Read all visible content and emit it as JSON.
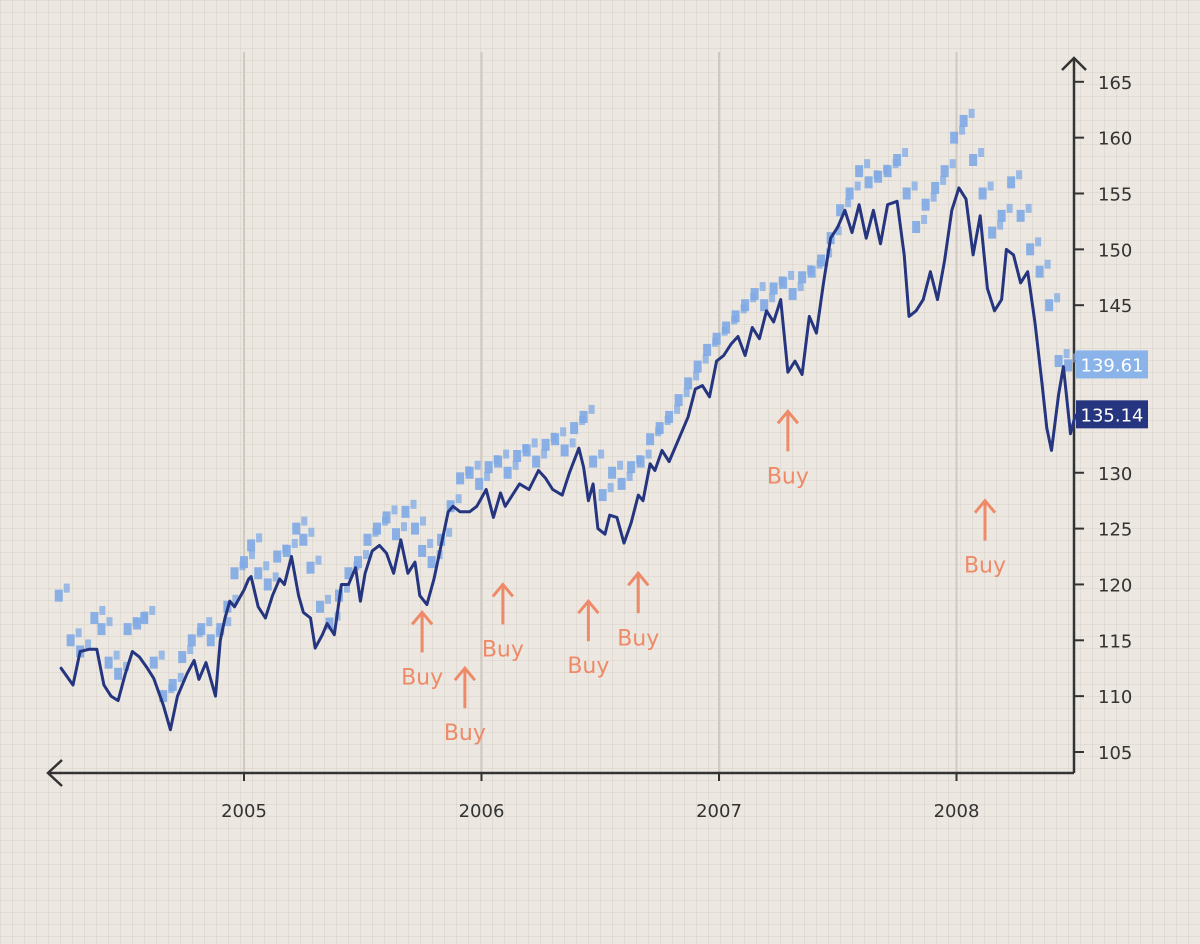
{
  "chart_data": {
    "type": "line",
    "x_axis": {
      "range": [
        2004.2,
        2008.5
      ],
      "ticks": [
        2005,
        2006,
        2007,
        2008
      ],
      "tick_labels": [
        "2005",
        "2006",
        "2007",
        "2008"
      ],
      "grid": true
    },
    "y_axis": {
      "range": [
        102,
        167
      ],
      "ticks": [
        105,
        110,
        115,
        120,
        125,
        130,
        135,
        140,
        145,
        150,
        155,
        160,
        165
      ],
      "tick_labels": [
        "105",
        "110",
        "115",
        "120",
        "125",
        "130",
        "135",
        "140",
        "145",
        "150",
        "155",
        "160",
        "165"
      ],
      "position": "right"
    },
    "colors": {
      "main_line": "#25357f",
      "secondary_dots": "#7fa9e4",
      "buy": "#ee8a68",
      "axis": "#333333",
      "badge_light": "#8ab3ea",
      "badge_dark": "#25357f"
    },
    "series": [
      {
        "style": "line",
        "points": [
          [
            2004.23,
            112.5
          ],
          [
            2004.28,
            111
          ],
          [
            2004.31,
            114
          ],
          [
            2004.35,
            114.2
          ],
          [
            2004.38,
            114.2
          ],
          [
            2004.41,
            111
          ],
          [
            2004.44,
            110
          ],
          [
            2004.47,
            109.6
          ],
          [
            2004.5,
            112
          ],
          [
            2004.53,
            114
          ],
          [
            2004.56,
            113.5
          ],
          [
            2004.59,
            112.6
          ],
          [
            2004.62,
            111.6
          ],
          [
            2004.66,
            109.2
          ],
          [
            2004.69,
            107
          ],
          [
            2004.72,
            110
          ],
          [
            2004.76,
            112
          ],
          [
            2004.79,
            113.2
          ],
          [
            2004.81,
            111.5
          ],
          [
            2004.84,
            113
          ],
          [
            2004.88,
            110
          ],
          [
            2004.9,
            115
          ],
          [
            2004.92,
            117
          ],
          [
            2004.94,
            118.5
          ],
          [
            2004.96,
            118
          ],
          [
            2005.0,
            119.5
          ],
          [
            2005.02,
            120.5
          ],
          [
            2005.03,
            120.7
          ],
          [
            2005.06,
            118
          ],
          [
            2005.09,
            117
          ],
          [
            2005.12,
            119
          ],
          [
            2005.15,
            120.5
          ],
          [
            2005.17,
            120
          ],
          [
            2005.2,
            122.5
          ],
          [
            2005.23,
            119
          ],
          [
            2005.25,
            117.5
          ],
          [
            2005.28,
            117
          ],
          [
            2005.3,
            114.3
          ],
          [
            2005.33,
            115.5
          ],
          [
            2005.35,
            116.5
          ],
          [
            2005.38,
            115.5
          ],
          [
            2005.41,
            120
          ],
          [
            2005.44,
            120
          ],
          [
            2005.47,
            121.5
          ],
          [
            2005.49,
            118.5
          ],
          [
            2005.51,
            121
          ],
          [
            2005.54,
            123
          ],
          [
            2005.57,
            123.5
          ],
          [
            2005.6,
            122.8
          ],
          [
            2005.63,
            121
          ],
          [
            2005.66,
            124
          ],
          [
            2005.69,
            121
          ],
          [
            2005.72,
            122
          ],
          [
            2005.74,
            119
          ],
          [
            2005.77,
            118.2
          ],
          [
            2005.8,
            120.5
          ],
          [
            2005.83,
            123.5
          ],
          [
            2005.86,
            126.5
          ],
          [
            2005.88,
            127
          ],
          [
            2005.91,
            126.5
          ],
          [
            2005.95,
            126.5
          ],
          [
            2005.98,
            127
          ],
          [
            2006.02,
            128.5
          ],
          [
            2006.05,
            126
          ],
          [
            2006.08,
            128.2
          ],
          [
            2006.1,
            127
          ],
          [
            2006.13,
            128
          ],
          [
            2006.16,
            129
          ],
          [
            2006.2,
            128.5
          ],
          [
            2006.24,
            130.2
          ],
          [
            2006.27,
            129.5
          ],
          [
            2006.3,
            128.5
          ],
          [
            2006.34,
            128
          ],
          [
            2006.37,
            130
          ],
          [
            2006.41,
            132.2
          ],
          [
            2006.43,
            130.5
          ],
          [
            2006.45,
            127.5
          ],
          [
            2006.47,
            129
          ],
          [
            2006.49,
            125
          ],
          [
            2006.52,
            124.5
          ],
          [
            2006.54,
            126.2
          ],
          [
            2006.57,
            126
          ],
          [
            2006.6,
            123.7
          ],
          [
            2006.63,
            125.5
          ],
          [
            2006.66,
            128
          ],
          [
            2006.68,
            127.5
          ],
          [
            2006.71,
            130.8
          ],
          [
            2006.73,
            130.2
          ],
          [
            2006.76,
            132
          ],
          [
            2006.79,
            131
          ],
          [
            2006.81,
            132
          ],
          [
            2006.84,
            133.5
          ],
          [
            2006.87,
            135
          ],
          [
            2006.9,
            137.5
          ],
          [
            2006.93,
            137.8
          ],
          [
            2006.96,
            136.8
          ],
          [
            2006.99,
            140
          ],
          [
            2007.02,
            140.5
          ],
          [
            2007.05,
            141.5
          ],
          [
            2007.08,
            142.2
          ],
          [
            2007.11,
            140.5
          ],
          [
            2007.14,
            143
          ],
          [
            2007.17,
            142
          ],
          [
            2007.2,
            144.5
          ],
          [
            2007.23,
            143.5
          ],
          [
            2007.26,
            145.5
          ],
          [
            2007.29,
            139
          ],
          [
            2007.32,
            140
          ],
          [
            2007.35,
            138.8
          ],
          [
            2007.38,
            144
          ],
          [
            2007.41,
            142.5
          ],
          [
            2007.44,
            147
          ],
          [
            2007.47,
            151
          ],
          [
            2007.5,
            152
          ],
          [
            2007.53,
            153.5
          ],
          [
            2007.56,
            151.5
          ],
          [
            2007.59,
            154
          ],
          [
            2007.62,
            151
          ],
          [
            2007.65,
            153.5
          ],
          [
            2007.68,
            150.5
          ],
          [
            2007.71,
            154
          ],
          [
            2007.75,
            154.3
          ],
          [
            2007.78,
            149.5
          ],
          [
            2007.8,
            144
          ],
          [
            2007.83,
            144.5
          ],
          [
            2007.86,
            145.5
          ],
          [
            2007.89,
            148
          ],
          [
            2007.92,
            145.5
          ],
          [
            2007.95,
            149
          ],
          [
            2007.98,
            153.5
          ],
          [
            2008.01,
            155.5
          ],
          [
            2008.04,
            154.5
          ],
          [
            2008.07,
            149.5
          ],
          [
            2008.1,
            153
          ],
          [
            2008.13,
            146.5
          ],
          [
            2008.16,
            144.5
          ],
          [
            2008.19,
            145.5
          ],
          [
            2008.21,
            150
          ],
          [
            2008.24,
            149.5
          ],
          [
            2008.27,
            147
          ],
          [
            2008.3,
            148
          ],
          [
            2008.33,
            143.5
          ],
          [
            2008.36,
            138
          ],
          [
            2008.38,
            134
          ],
          [
            2008.4,
            132
          ],
          [
            2008.43,
            137
          ],
          [
            2008.45,
            139.5
          ],
          [
            2008.48,
            133.5
          ],
          [
            2008.5,
            135.14
          ]
        ]
      },
      {
        "style": "dots",
        "points": [
          [
            2004.22,
            119
          ],
          [
            2004.27,
            115
          ],
          [
            2004.31,
            114
          ],
          [
            2004.37,
            117
          ],
          [
            2004.4,
            116
          ],
          [
            2004.43,
            113
          ],
          [
            2004.47,
            112
          ],
          [
            2004.51,
            116
          ],
          [
            2004.55,
            116.5
          ],
          [
            2004.58,
            117
          ],
          [
            2004.62,
            113
          ],
          [
            2004.66,
            110
          ],
          [
            2004.7,
            111
          ],
          [
            2004.74,
            113.5
          ],
          [
            2004.78,
            115
          ],
          [
            2004.82,
            116
          ],
          [
            2004.86,
            115
          ],
          [
            2004.9,
            116
          ],
          [
            2004.93,
            118
          ],
          [
            2004.96,
            121
          ],
          [
            2005.0,
            122
          ],
          [
            2005.03,
            123.5
          ],
          [
            2005.06,
            121
          ],
          [
            2005.1,
            120
          ],
          [
            2005.14,
            122.5
          ],
          [
            2005.18,
            123
          ],
          [
            2005.22,
            125
          ],
          [
            2005.25,
            124
          ],
          [
            2005.28,
            121.5
          ],
          [
            2005.32,
            118
          ],
          [
            2005.36,
            116.5
          ],
          [
            2005.4,
            119
          ],
          [
            2005.44,
            121
          ],
          [
            2005.48,
            122
          ],
          [
            2005.52,
            124
          ],
          [
            2005.56,
            125
          ],
          [
            2005.6,
            126
          ],
          [
            2005.64,
            124.5
          ],
          [
            2005.68,
            126.5
          ],
          [
            2005.72,
            125
          ],
          [
            2005.75,
            123
          ],
          [
            2005.79,
            122
          ],
          [
            2005.83,
            124
          ],
          [
            2005.87,
            127
          ],
          [
            2005.91,
            129.5
          ],
          [
            2005.95,
            130
          ],
          [
            2005.99,
            129
          ],
          [
            2006.03,
            130.5
          ],
          [
            2006.07,
            131
          ],
          [
            2006.11,
            130
          ],
          [
            2006.15,
            131.5
          ],
          [
            2006.19,
            132
          ],
          [
            2006.23,
            131
          ],
          [
            2006.27,
            132.5
          ],
          [
            2006.31,
            133
          ],
          [
            2006.35,
            132
          ],
          [
            2006.39,
            134
          ],
          [
            2006.43,
            135
          ],
          [
            2006.47,
            131
          ],
          [
            2006.51,
            128
          ],
          [
            2006.55,
            130
          ],
          [
            2006.59,
            129
          ],
          [
            2006.63,
            130.5
          ],
          [
            2006.67,
            131
          ],
          [
            2006.71,
            133
          ],
          [
            2006.75,
            134
          ],
          [
            2006.79,
            135
          ],
          [
            2006.83,
            136.5
          ],
          [
            2006.87,
            138
          ],
          [
            2006.91,
            139.5
          ],
          [
            2006.95,
            141
          ],
          [
            2006.99,
            142
          ],
          [
            2007.03,
            143
          ],
          [
            2007.07,
            144
          ],
          [
            2007.11,
            145
          ],
          [
            2007.15,
            146
          ],
          [
            2007.19,
            145
          ],
          [
            2007.23,
            146.5
          ],
          [
            2007.27,
            147
          ],
          [
            2007.31,
            146
          ],
          [
            2007.35,
            147.5
          ],
          [
            2007.39,
            148
          ],
          [
            2007.43,
            149
          ],
          [
            2007.47,
            151
          ],
          [
            2007.51,
            153.5
          ],
          [
            2007.55,
            155
          ],
          [
            2007.59,
            157
          ],
          [
            2007.63,
            156
          ],
          [
            2007.67,
            156.5
          ],
          [
            2007.71,
            157
          ],
          [
            2007.75,
            158
          ],
          [
            2007.79,
            155
          ],
          [
            2007.83,
            152
          ],
          [
            2007.87,
            154
          ],
          [
            2007.91,
            155.5
          ],
          [
            2007.95,
            157
          ],
          [
            2007.99,
            160
          ],
          [
            2008.03,
            161.5
          ],
          [
            2008.07,
            158
          ],
          [
            2008.11,
            155
          ],
          [
            2008.15,
            151.5
          ],
          [
            2008.19,
            153
          ],
          [
            2008.23,
            156
          ],
          [
            2008.27,
            153
          ],
          [
            2008.31,
            150
          ],
          [
            2008.35,
            148
          ],
          [
            2008.39,
            145
          ],
          [
            2008.43,
            140
          ],
          [
            2008.47,
            139.61
          ]
        ]
      }
    ],
    "badges": [
      {
        "value": "139.61",
        "style": "light"
      },
      {
        "value": "135.14",
        "style": "dark"
      }
    ],
    "annotations": [
      {
        "text": "Buy",
        "x": 2005.75,
        "y": 117.5
      },
      {
        "text": "Buy",
        "x": 2005.93,
        "y": 112.5
      },
      {
        "text": "Buy",
        "x": 2006.09,
        "y": 120
      },
      {
        "text": "Buy",
        "x": 2006.45,
        "y": 118.5
      },
      {
        "text": "Buy",
        "x": 2006.66,
        "y": 121
      },
      {
        "text": "Buy",
        "x": 2007.29,
        "y": 135.5
      },
      {
        "text": "Buy",
        "x": 2008.12,
        "y": 127.5
      }
    ]
  }
}
